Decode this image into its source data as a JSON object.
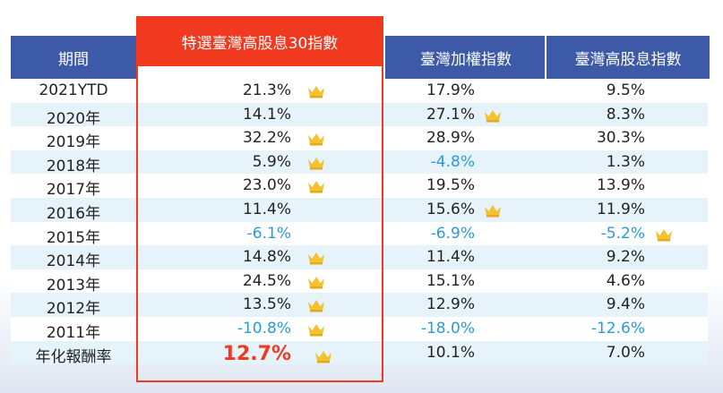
{
  "table": {
    "header": [
      "期間",
      "特選臺灣高股息30指數",
      "臺灣加權指數",
      "臺灣高股息指數"
    ],
    "rows": [
      [
        "2021YTD",
        "21.3%",
        "17.9%",
        "9.5%"
      ],
      [
        "2020年",
        "14.1%",
        "27.1%",
        "8.3%"
      ],
      [
        "2019年",
        "32.2%",
        "28.9%",
        "30.3%"
      ],
      [
        "2018年",
        "5.9%",
        "-4.8%",
        "1.3%"
      ],
      [
        "2017年",
        "23.0%",
        "19.5%",
        "13.9%"
      ],
      [
        "2016年",
        "11.4%",
        "15.6%",
        "11.9%"
      ],
      [
        "2015年",
        "-6.1%",
        "-6.9%",
        "-5.2%"
      ],
      [
        "2014年",
        "14.8%",
        "11.4%",
        "9.2%"
      ],
      [
        "2013年",
        "24.5%",
        "15.1%",
        "4.6%"
      ],
      [
        "2012年",
        "13.5%",
        "12.9%",
        "9.4%"
      ],
      [
        "2011年",
        "-10.8%",
        "-18.0%",
        "-12.6%"
      ],
      [
        "年化報酬率",
        "12.7%",
        "10.1%",
        "7.0%"
      ]
    ]
  }
}
